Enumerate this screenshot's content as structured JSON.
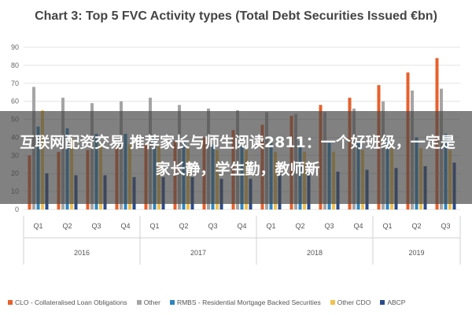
{
  "chart_data": {
    "type": "bar",
    "title": "Chart 3: Top 5 FVC Activity types (Total Debt Securities Issued €bn)",
    "categories": [
      "Q1",
      "Q2",
      "Q3",
      "Q4",
      "Q1",
      "Q2",
      "Q3",
      "Q4",
      "Q1",
      "Q2",
      "Q3",
      "Q4",
      "Q1",
      "Q2",
      "Q3"
    ],
    "year_groups": [
      {
        "label": "2016",
        "quarters": 4
      },
      {
        "label": "2017",
        "quarters": 4
      },
      {
        "label": "2018",
        "quarters": 4
      },
      {
        "label": "2019",
        "quarters": 3
      }
    ],
    "yticks": [
      0,
      10,
      20,
      30,
      40,
      50,
      60,
      70,
      80,
      90
    ],
    "ylim": [
      0,
      90
    ],
    "grid": true,
    "legend_position": "bottom",
    "series": [
      {
        "name": "CLO - Collateralised Loan Obligations",
        "color": "#e8602c",
        "values": [
          30,
          32,
          33,
          35,
          36,
          38,
          40,
          44,
          47,
          52,
          58,
          62,
          69,
          76,
          84
        ]
      },
      {
        "name": "Other",
        "color": "#a5a5a5",
        "values": [
          68,
          62,
          59,
          60,
          62,
          58,
          56,
          55,
          54,
          53,
          54,
          56,
          60,
          66,
          67
        ]
      },
      {
        "name": "RMBS - Residential Mortgage Backed Securities",
        "color": "#2e86c1",
        "values": [
          46,
          45,
          42,
          42,
          40,
          38,
          36,
          35,
          37,
          38,
          37,
          38,
          38,
          40,
          42
        ]
      },
      {
        "name": "Other CDO",
        "color": "#f2c14e",
        "values": [
          55,
          40,
          37,
          36,
          35,
          34,
          33,
          33,
          32,
          32,
          32,
          33,
          34,
          34,
          33
        ]
      },
      {
        "name": "ABCP",
        "color": "#2a4b8d",
        "values": [
          20,
          19,
          19,
          18,
          18,
          18,
          17,
          17,
          19,
          20,
          21,
          22,
          23,
          24,
          26
        ]
      }
    ]
  },
  "overlay": {
    "text": "互联网配资交易 推荐家长与师生阅读2811：一个好班级，一定是家长静，学生勤，教师新"
  }
}
